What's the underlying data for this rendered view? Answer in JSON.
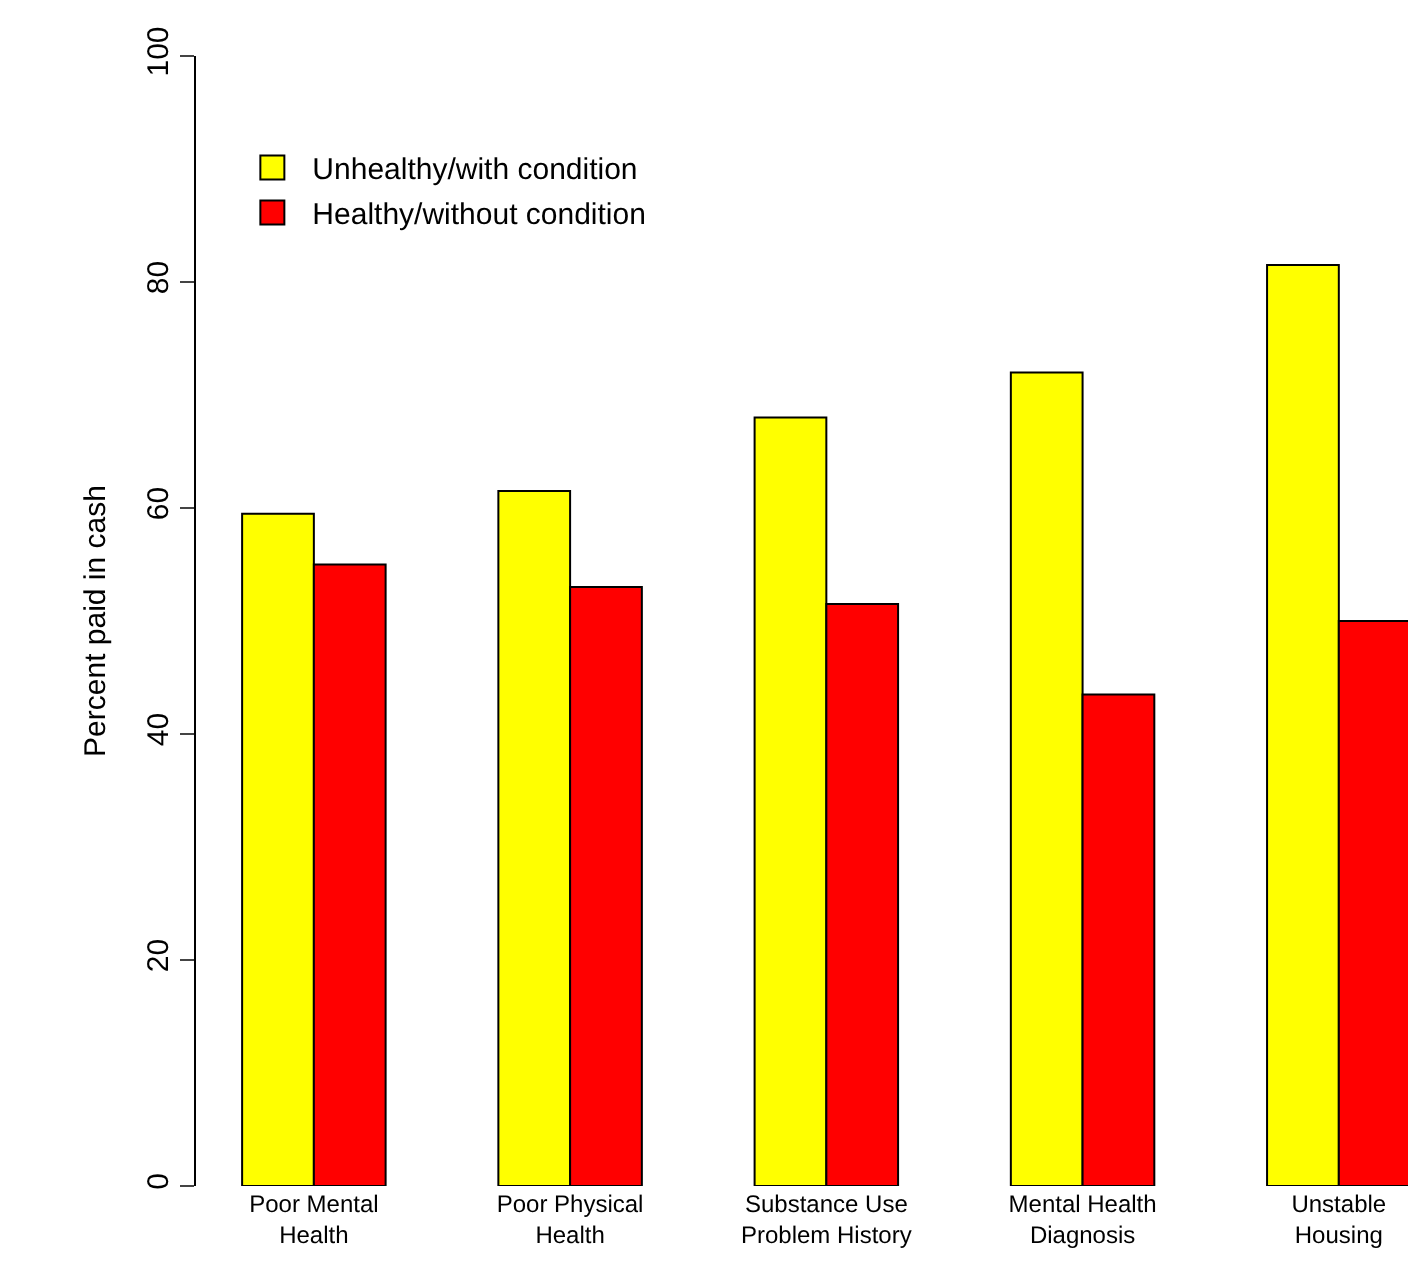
{
  "chart_data": {
    "type": "bar",
    "ylabel": "Percent paid in cash",
    "categories": [
      "Poor Mental\nHealth",
      "Poor Physical\nHealth",
      "Substance Use\nProblem History",
      "Mental Health\nDiagnosis",
      "Unstable\nHousing"
    ],
    "series": [
      {
        "name": "Unhealthy/with condition",
        "color": "#ffff00",
        "values": [
          59.5,
          61.5,
          68,
          72,
          81.5
        ]
      },
      {
        "name": "Healthy/without condition",
        "color": "#ff0000",
        "values": [
          55,
          53,
          51.5,
          43.5,
          50
        ]
      }
    ],
    "ylim": [
      0,
      100
    ],
    "yticks": [
      0,
      20,
      40,
      60,
      80,
      100
    ],
    "grid": false,
    "legend": "top left"
  }
}
